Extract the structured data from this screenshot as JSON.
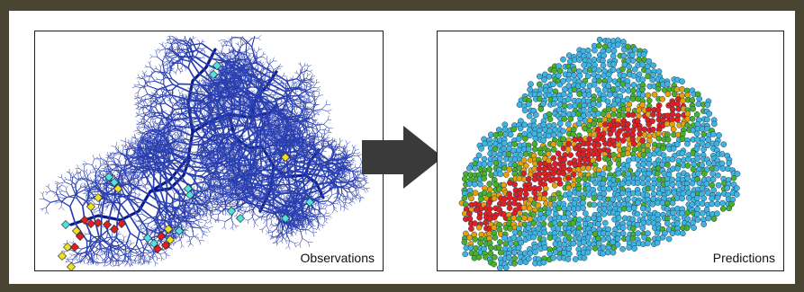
{
  "panels": {
    "observations": {
      "label": "Observations"
    },
    "predictions": {
      "label": "Predictions"
    }
  },
  "colors": {
    "frame": "#4a4533",
    "river_main": "#0b1b8c",
    "river_tributary": "#2a3fb0",
    "arrow": "#3a3a3a",
    "low": "#3fb4e0",
    "low_observed": "#4fe3e0",
    "medium": "#4ab02a",
    "medium_high": "#e6a00a",
    "elevated": "#f0e020",
    "high": "#e02020"
  },
  "icons": {
    "arrow": "right-arrow-icon"
  }
}
